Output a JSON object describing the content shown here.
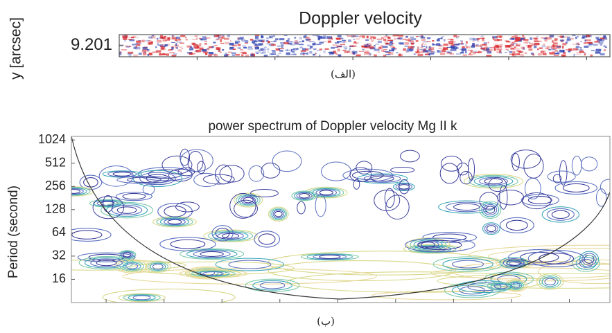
{
  "chart_data": [
    {
      "type": "heatmap",
      "title": "Doppler velocity",
      "y_label": "y [arcsec]",
      "yticks": [
        9.201
      ],
      "ylim": [
        9.1,
        9.3
      ],
      "caption": "(الف)",
      "colormap": [
        "#2b3fb0",
        "#ffffff",
        "#d8262a"
      ]
    },
    {
      "type": "contour",
      "title": "power spectrum of Doppler velocity Mg II k",
      "y_label": "Period (second)",
      "yscale": "log",
      "ylim": [
        8,
        1140
      ],
      "yticks": [
        16,
        32,
        64,
        128,
        256,
        512,
        1024
      ],
      "caption": "(ب)",
      "colors": [
        "#3b3f9c",
        "#5a6fc0",
        "#3aa6b8",
        "#7cc8a8",
        "#d8d88a",
        "#e8d89a"
      ]
    }
  ]
}
